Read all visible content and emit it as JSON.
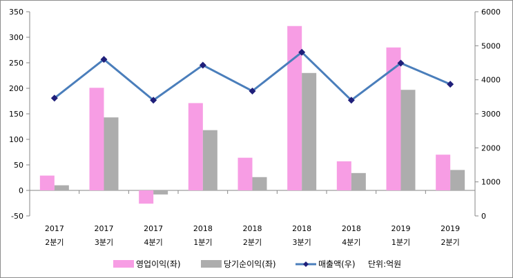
{
  "chart_data": {
    "type": "bar",
    "categories": [
      [
        "2017",
        "2분기"
      ],
      [
        "2017",
        "3분기"
      ],
      [
        "2017",
        "4분기"
      ],
      [
        "2018",
        "1분기"
      ],
      [
        "2018",
        "2분기"
      ],
      [
        "2018",
        "3분기"
      ],
      [
        "2018",
        "4분기"
      ],
      [
        "2019",
        "1분기"
      ],
      [
        "2019",
        "2분기"
      ]
    ],
    "series": [
      {
        "name": "영업이익(좌)",
        "type": "bar",
        "axis": "left",
        "color": "#F79DE4",
        "values": [
          29,
          201,
          -26,
          171,
          64,
          322,
          57,
          280,
          70
        ]
      },
      {
        "name": "당기순이익(좌)",
        "type": "bar",
        "axis": "left",
        "color": "#ADADAD",
        "values": [
          10,
          143,
          -8,
          118,
          26,
          230,
          34,
          197,
          40
        ]
      },
      {
        "name": "매출액(우)",
        "type": "line",
        "axis": "right",
        "color": "#4A7EBB",
        "marker_color": "#1F1F7A",
        "values": [
          3460,
          4600,
          3400,
          4430,
          3670,
          4810,
          3400,
          4490,
          3870
        ]
      }
    ],
    "y_left": {
      "min": -50,
      "max": 350,
      "ticks": [
        "-50",
        "0",
        "50",
        "100",
        "150",
        "200",
        "250",
        "300",
        "350"
      ]
    },
    "y_right": {
      "min": 0,
      "max": 6000,
      "ticks": [
        "0",
        "1000",
        "2000",
        "3000",
        "4000",
        "5000",
        "6000"
      ]
    },
    "legend_position": "bottom",
    "grid": false,
    "unit_note": "단위:억원"
  }
}
